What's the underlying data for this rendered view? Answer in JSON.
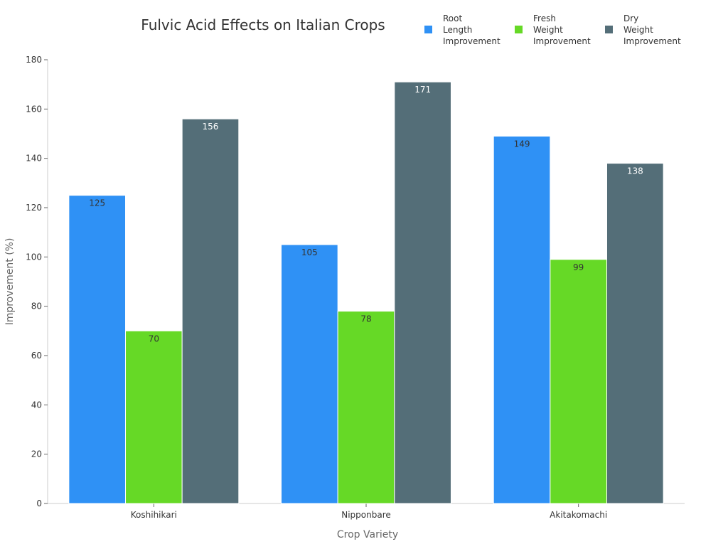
{
  "chart_data": {
    "type": "bar",
    "title": "Fulvic Acid Effects on Italian Crops",
    "xlabel": "Crop Variety",
    "ylabel": "Improvement (%)",
    "categories": [
      "Koshihikari",
      "Nipponbare",
      "Akitakomachi"
    ],
    "ylim": [
      0,
      180
    ],
    "yticks": [
      0,
      20,
      40,
      60,
      80,
      100,
      120,
      140,
      160,
      180
    ],
    "grid": false,
    "legend_placement": "top-right",
    "series": [
      {
        "name": "Root Length Improvement",
        "legend_lines": [
          "Root",
          "Length",
          "Improvement"
        ],
        "color": "#2f91f5",
        "label_color": "#333333",
        "values": [
          125,
          105,
          149
        ]
      },
      {
        "name": "Fresh Weight Improvement",
        "legend_lines": [
          "Fresh",
          "Weight",
          "Improvement"
        ],
        "color": "#66d926",
        "label_color": "#333333",
        "values": [
          70,
          78,
          99
        ]
      },
      {
        "name": "Dry Weight Improvement",
        "legend_lines": [
          "Dry",
          "Weight",
          "Improvement"
        ],
        "color": "#546e78",
        "label_color": "#ffffff",
        "values": [
          156,
          171,
          138
        ]
      }
    ]
  }
}
